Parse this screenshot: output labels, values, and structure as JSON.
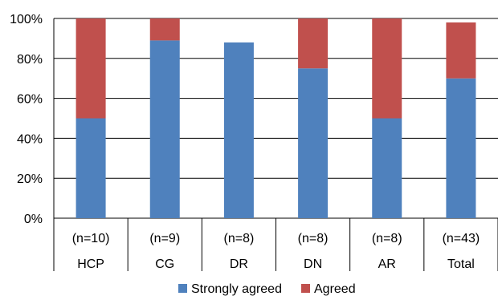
{
  "chart_data": {
    "type": "bar",
    "stacked": true,
    "categories": [
      [
        "(n=10)",
        "HCP"
      ],
      [
        "(n=9)",
        "CG"
      ],
      [
        "(n=8)",
        "DR"
      ],
      [
        "(n=8)",
        "DN"
      ],
      [
        "(n=8)",
        "AR"
      ],
      [
        "(n=43)",
        "Total"
      ]
    ],
    "series": [
      {
        "name": "Strongly agreed",
        "color": "#4F81BD",
        "values": [
          50,
          89,
          88,
          75,
          50,
          70
        ]
      },
      {
        "name": "Agreed",
        "color": "#C0504D",
        "values": [
          50,
          11,
          0,
          25,
          50,
          28
        ]
      }
    ],
    "ylim": [
      0,
      100
    ],
    "yticks": [
      "0%",
      "20%",
      "40%",
      "60%",
      "80%",
      "100%"
    ],
    "grid": true,
    "legend": "bottom"
  }
}
